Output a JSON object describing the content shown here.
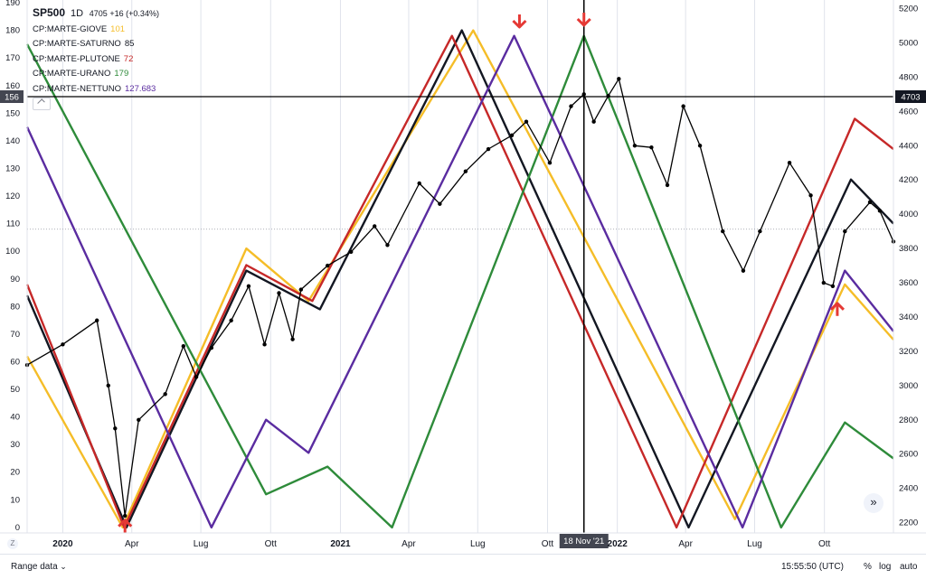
{
  "legend": {
    "symbol": "SP500",
    "interval": "1D",
    "price": "4705",
    "change": "+16 (+0.34%)",
    "indicators": [
      {
        "name": "CP:MARTE-GIOVE",
        "value": "101",
        "color": "#f5bd28"
      },
      {
        "name": "CP:MARTE-SATURNO",
        "value": "85",
        "color": "#131722"
      },
      {
        "name": "CP:MARTE-PLUTONE",
        "value": "72",
        "color": "#c62828"
      },
      {
        "name": "CP:MARTE-URANO",
        "value": "179",
        "color": "#2e8b3a"
      },
      {
        "name": "CP:MARTE-NETTUNO",
        "value": "127.683",
        "color": "#5a2ca0"
      }
    ]
  },
  "left_axis": {
    "ticks": [
      "0",
      "10",
      "20",
      "30",
      "40",
      "50",
      "60",
      "70",
      "80",
      "90",
      "100",
      "110",
      "120",
      "130",
      "140",
      "150",
      "160",
      "170",
      "180",
      "190"
    ],
    "crosshair_label": "156"
  },
  "right_axis": {
    "ticks": [
      "2200",
      "2400",
      "2600",
      "2800",
      "3000",
      "3200",
      "3400",
      "3600",
      "3800",
      "4000",
      "4200",
      "4400",
      "4600",
      "4800",
      "5000",
      "5200"
    ],
    "crosshair_label": "4703"
  },
  "time_axis": {
    "ticks": [
      {
        "label": "2020",
        "bold": true
      },
      {
        "label": "Apr",
        "bold": false
      },
      {
        "label": "Lug",
        "bold": false
      },
      {
        "label": "Ott",
        "bold": false
      },
      {
        "label": "2021",
        "bold": true
      },
      {
        "label": "Apr",
        "bold": false
      },
      {
        "label": "Lug",
        "bold": false
      },
      {
        "label": "Ott",
        "bold": false
      },
      {
        "label": "2022",
        "bold": true
      },
      {
        "label": "Apr",
        "bold": false
      },
      {
        "label": "Lug",
        "bold": false
      },
      {
        "label": "Ott",
        "bold": false
      }
    ],
    "crosshair_label": "18 Nov '21"
  },
  "bottom_bar": {
    "range_label": "Range data",
    "time": "15:55:50 (UTC)",
    "percent": "%",
    "log": "log",
    "auto": "auto"
  },
  "icons": {
    "z": "Z",
    "scroll": "»"
  },
  "colors": {
    "price": "#000000",
    "arrow": "#e53935",
    "grid": "#e0e3eb",
    "crosshair": "#000000"
  },
  "chart_data": {
    "type": "line",
    "title": "SP500",
    "x_range": [
      "2019-11-15",
      "2022-12-31"
    ],
    "ylim_left": [
      -2,
      191
    ],
    "ylim_right": [
      2140,
      5250
    ],
    "horizontal_line": {
      "left_value": 156,
      "right_value": 4703
    },
    "vertical_line_date": "2021-11-18",
    "series": [
      {
        "name": "CP:MARTE-GIOVE",
        "axis": "left",
        "color": "#f5bd28",
        "x": [
          "2019-11-15",
          "2020-03-20",
          "2020-08-30",
          "2020-11-20",
          "2021-06-25",
          "2022-06-05",
          "2022-10-28",
          "2022-12-31"
        ],
        "y": [
          62,
          0,
          101,
          82,
          180,
          3,
          88,
          68
        ]
      },
      {
        "name": "CP:MARTE-SATURNO",
        "axis": "left",
        "color": "#131722",
        "x": [
          "2019-11-15",
          "2020-03-25",
          "2020-08-30",
          "2020-12-05",
          "2021-06-10",
          "2022-04-05",
          "2022-11-05",
          "2022-12-31"
        ],
        "y": [
          84,
          0,
          93,
          79,
          180,
          0,
          126,
          110
        ]
      },
      {
        "name": "CP:MARTE-PLUTONE",
        "axis": "left",
        "color": "#c62828",
        "x": [
          "2019-11-15",
          "2020-03-22",
          "2020-08-30",
          "2020-11-25",
          "2021-05-28",
          "2022-03-20",
          "2022-11-10",
          "2022-12-31"
        ],
        "y": [
          88,
          0,
          95,
          82,
          178,
          0,
          148,
          137
        ]
      },
      {
        "name": "CP:MARTE-URANO",
        "axis": "left",
        "color": "#2e8b3a",
        "x": [
          "2019-11-15",
          "2020-09-25",
          "2020-12-15",
          "2021-03-10",
          "2021-11-18",
          "2022-08-05",
          "2022-10-28",
          "2022-12-31"
        ],
        "y": [
          175,
          12,
          22,
          0,
          178,
          0,
          38,
          25
        ]
      },
      {
        "name": "CP:MARTE-NETTUNO",
        "axis": "left",
        "color": "#5a2ca0",
        "x": [
          "2019-11-15",
          "2020-07-15",
          "2020-09-25",
          "2020-11-20",
          "2021-08-18",
          "2022-06-15",
          "2022-10-28",
          "2022-12-31"
        ],
        "y": [
          145,
          0,
          39,
          27,
          178,
          0,
          93,
          71
        ]
      },
      {
        "name": "SP500",
        "axis": "right",
        "color": "#000000",
        "x": [
          "2019-11-15",
          "2020-01-01",
          "2020-02-15",
          "2020-03-01",
          "2020-03-10",
          "2020-03-23",
          "2020-04-10",
          "2020-05-15",
          "2020-06-08",
          "2020-06-25",
          "2020-07-15",
          "2020-08-10",
          "2020-09-02",
          "2020-09-23",
          "2020-10-12",
          "2020-10-30",
          "2020-11-10",
          "2020-12-15",
          "2021-01-15",
          "2021-02-15",
          "2021-03-04",
          "2021-04-15",
          "2021-05-12",
          "2021-06-15",
          "2021-07-15",
          "2021-08-15",
          "2021-09-03",
          "2021-10-04",
          "2021-11-01",
          "2021-11-18",
          "2021-12-01",
          "2021-12-20",
          "2022-01-03",
          "2022-01-24",
          "2022-02-15",
          "2022-03-08",
          "2022-03-29",
          "2022-04-20",
          "2022-05-20",
          "2022-06-16",
          "2022-07-08",
          "2022-08-16",
          "2022-09-13",
          "2022-09-30",
          "2022-10-12",
          "2022-10-28",
          "2022-11-30",
          "2022-12-13",
          "2022-12-31"
        ],
        "y": [
          3120,
          3240,
          3380,
          3000,
          2750,
          2240,
          2800,
          2950,
          3230,
          3050,
          3220,
          3380,
          3580,
          3240,
          3540,
          3270,
          3560,
          3700,
          3780,
          3930,
          3820,
          4180,
          4060,
          4250,
          4380,
          4460,
          4540,
          4300,
          4630,
          4700,
          4540,
          4690,
          4790,
          4400,
          4390,
          4170,
          4630,
          4400,
          3900,
          3670,
          3900,
          4300,
          4110,
          3600,
          3580,
          3900,
          4070,
          4020,
          3840
        ]
      }
    ]
  }
}
